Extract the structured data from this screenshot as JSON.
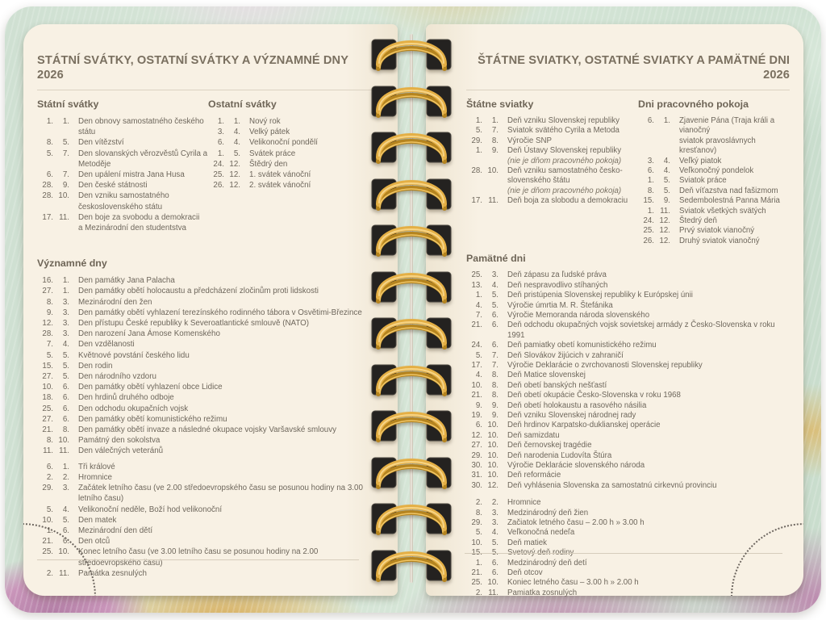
{
  "colors": {
    "page_cream": "#f7f0e3",
    "text_brown": "#6e675c",
    "cover_mint": "#d3e4d5",
    "cover_pink": "#c28eb4",
    "cover_gold": "#d9a94e",
    "spiral_gold": "#e4af45",
    "spiral_hole_black": "#242220"
  },
  "left_page": {
    "title": "STÁTNÍ SVÁTKY, OSTATNÍ SVÁTKY A VÝZNAMNÉ DNY 2026",
    "state_holidays": {
      "heading": "Státní svátky",
      "items": [
        {
          "d": "1.",
          "m": "1.",
          "text": "Den obnovy samostatného českého státu"
        },
        {
          "d": "8.",
          "m": "5.",
          "text": "Den vítězství"
        },
        {
          "d": "5.",
          "m": "7.",
          "text": "Den slovanských věrozvěstů Cyrila a Metoděje"
        },
        {
          "d": "6.",
          "m": "7.",
          "text": "Den upálení mistra Jana Husa"
        },
        {
          "d": "28.",
          "m": "9.",
          "text": "Den české státnosti"
        },
        {
          "d": "28.",
          "m": "10.",
          "text": "Den vzniku samostatného československého státu"
        },
        {
          "d": "17.",
          "m": "11.",
          "text": "Den boje za svobodu a demokracii",
          "text2": "a Mezinárodní den studentstva"
        }
      ]
    },
    "other_holidays": {
      "heading": "Ostatní svátky",
      "items": [
        {
          "d": "1.",
          "m": "1.",
          "text": "Nový rok"
        },
        {
          "d": "3.",
          "m": "4.",
          "text": "Velký pátek"
        },
        {
          "d": "6.",
          "m": "4.",
          "text": "Velikonoční pondělí"
        },
        {
          "d": "1.",
          "m": "5.",
          "text": "Svátek práce"
        },
        {
          "d": "24.",
          "m": "12.",
          "text": "Štědrý den"
        },
        {
          "d": "25.",
          "m": "12.",
          "text": "1. svátek vánoční"
        },
        {
          "d": "26.",
          "m": "12.",
          "text": "2. svátek vánoční"
        }
      ]
    },
    "notable_days": {
      "heading": "Významné dny",
      "items": [
        {
          "d": "16.",
          "m": "1.",
          "text": "Den památky Jana Palacha"
        },
        {
          "d": "27.",
          "m": "1.",
          "text": "Den památky obětí holocaustu a předcházení zločinům proti lidskosti"
        },
        {
          "d": "8.",
          "m": "3.",
          "text": "Mezinárodní den žen"
        },
        {
          "d": "9.",
          "m": "3.",
          "text": "Den památky obětí vyhlazení terezínského rodinného tábora v Osvětimi-Březince"
        },
        {
          "d": "12.",
          "m": "3.",
          "text": "Den přístupu České republiky k Severoatlantické smlouvě (NATO)"
        },
        {
          "d": "28.",
          "m": "3.",
          "text": "Den narození Jana Ámose Komenského"
        },
        {
          "d": "7.",
          "m": "4.",
          "text": "Den vzdělanosti"
        },
        {
          "d": "5.",
          "m": "5.",
          "text": "Květnové povstání českého lidu"
        },
        {
          "d": "15.",
          "m": "5.",
          "text": "Den rodin"
        },
        {
          "d": "27.",
          "m": "5.",
          "text": "Den národního vzdoru"
        },
        {
          "d": "10.",
          "m": "6.",
          "text": "Den památky obětí vyhlazení obce Lidice"
        },
        {
          "d": "18.",
          "m": "6.",
          "text": "Den hrdinů druhého odboje"
        },
        {
          "d": "25.",
          "m": "6.",
          "text": "Den odchodu okupačních vojsk"
        },
        {
          "d": "27.",
          "m": "6.",
          "text": "Den památky obětí komunistického režimu"
        },
        {
          "d": "21.",
          "m": "8.",
          "text": "Den památky obětí invaze a následné okupace vojsky Varšavské smlouvy"
        },
        {
          "d": "8.",
          "m": "10.",
          "text": "Památný den sokolstva"
        },
        {
          "d": "11.",
          "m": "11.",
          "text": "Den válečných veteránů"
        }
      ],
      "items2": [
        {
          "d": "6.",
          "m": "1.",
          "text": "Tři králové"
        },
        {
          "d": "2.",
          "m": "2.",
          "text": "Hromnice"
        },
        {
          "d": "29.",
          "m": "3.",
          "text": "Začátek letního času (ve 2.00 středoevropského času se posunou hodiny na 3.00 letního času)"
        },
        {
          "d": "5.",
          "m": "4.",
          "text": "Velikonoční neděle, Boží hod velikonoční"
        },
        {
          "d": "10.",
          "m": "5.",
          "text": "Den matek"
        },
        {
          "d": "1.",
          "m": "6.",
          "text": "Mezinárodní den dětí"
        },
        {
          "d": "21.",
          "m": "6.",
          "text": "Den otců"
        },
        {
          "d": "25.",
          "m": "10.",
          "text": "Konec letního času (ve 3.00 letního času se posunou hodiny na 2.00 středoevropského času)"
        },
        {
          "d": "2.",
          "m": "11.",
          "text": "Památka zesnulých"
        }
      ]
    }
  },
  "right_page": {
    "title": "ŠTÁTNE SVIATKY, OSTATNÉ SVIATKY A PAMÄTNÉ DNI 2026",
    "state_holidays": {
      "heading": "Štátne sviatky",
      "items": [
        {
          "d": "1.",
          "m": "1.",
          "text": "Deň vzniku Slovenskej republiky"
        },
        {
          "d": "5.",
          "m": "7.",
          "text": "Sviatok svätého Cyrila a Metoda"
        },
        {
          "d": "29.",
          "m": "8.",
          "text": "Výročie SNP"
        },
        {
          "d": "1.",
          "m": "9.",
          "text": "Deň Ústavy Slovenskej republiky",
          "note": "(nie je dňom pracovného pokoja)"
        },
        {
          "d": "28.",
          "m": "10.",
          "text": "Deň vzniku samostatného česko-slovenského štátu",
          "note": "(nie je dňom pracovného pokoja)"
        },
        {
          "d": "17.",
          "m": "11.",
          "text": "Deň boja za slobodu a demokraciu"
        }
      ]
    },
    "rest_days": {
      "heading": "Dni pracovného pokoja",
      "items": [
        {
          "d": "6.",
          "m": "1.",
          "text": "Zjavenie Pána (Traja králi a vianočný",
          "text2": "sviatok pravoslávnych kresťanov)"
        },
        {
          "d": "3.",
          "m": "4.",
          "text": "Veľký piatok"
        },
        {
          "d": "6.",
          "m": "4.",
          "text": "Veľkonočný pondelok"
        },
        {
          "d": "1.",
          "m": "5.",
          "text": "Sviatok práce"
        },
        {
          "d": "8.",
          "m": "5.",
          "text": "Deň víťazstva nad fašizmom"
        },
        {
          "d": "15.",
          "m": "9.",
          "text": "Sedembolestná Panna Mária"
        },
        {
          "d": "1.",
          "m": "11.",
          "text": "Sviatok všetkých svätých"
        },
        {
          "d": "24.",
          "m": "12.",
          "text": "Štedrý deň"
        },
        {
          "d": "25.",
          "m": "12.",
          "text": "Prvý sviatok vianočný"
        },
        {
          "d": "26.",
          "m": "12.",
          "text": "Druhý sviatok vianočný"
        }
      ]
    },
    "memorial_days": {
      "heading": "Pamätné dni",
      "items": [
        {
          "d": "25.",
          "m": "3.",
          "text": "Deň zápasu za ľudské práva"
        },
        {
          "d": "13.",
          "m": "4.",
          "text": "Deň nespravodlivo stíhaných"
        },
        {
          "d": "1.",
          "m": "5.",
          "text": "Deň pristúpenia Slovenskej republiky k Európskej únii"
        },
        {
          "d": "4.",
          "m": "5.",
          "text": "Výročie úmrtia M. R. Štefánika"
        },
        {
          "d": "7.",
          "m": "6.",
          "text": "Výročie Memoranda národa slovenského"
        },
        {
          "d": "21.",
          "m": "6.",
          "text": "Deň odchodu okupačných vojsk sovietskej armády z Česko-Slovenska v roku 1991"
        },
        {
          "d": "24.",
          "m": "6.",
          "text": "Deň pamiatky obetí komunistického režimu"
        },
        {
          "d": "5.",
          "m": "7.",
          "text": "Deň Slovákov žijúcich v zahraničí"
        },
        {
          "d": "17.",
          "m": "7.",
          "text": "Výročie Deklarácie o zvrchovanosti Slovenskej republiky"
        },
        {
          "d": "4.",
          "m": "8.",
          "text": "Deň Matice slovenskej"
        },
        {
          "d": "10.",
          "m": "8.",
          "text": "Deň obetí banských nešťastí"
        },
        {
          "d": "21.",
          "m": "8.",
          "text": "Deň obetí okupácie Česko-Slovenska v roku 1968"
        },
        {
          "d": "9.",
          "m": "9.",
          "text": "Deň obetí holokaustu a rasového násilia"
        },
        {
          "d": "19.",
          "m": "9.",
          "text": "Deň vzniku Slovenskej národnej rady"
        },
        {
          "d": "6.",
          "m": "10.",
          "text": "Deň hrdinov Karpatsko-duklianskej operácie"
        },
        {
          "d": "12.",
          "m": "10.",
          "text": "Deň samizdatu"
        },
        {
          "d": "27.",
          "m": "10.",
          "text": "Deň černovskej tragédie"
        },
        {
          "d": "29.",
          "m": "10.",
          "text": "Deň narodenia Ľudovíta Štúra"
        },
        {
          "d": "30.",
          "m": "10.",
          "text": "Výročie Deklarácie slovenského národa"
        },
        {
          "d": "31.",
          "m": "10.",
          "text": "Deň reformácie"
        },
        {
          "d": "30.",
          "m": "12.",
          "text": "Deň vyhlásenia Slovenska za samostatnú cirkevnú provinciu"
        }
      ],
      "items2": [
        {
          "d": "2.",
          "m": "2.",
          "text": "Hromnice"
        },
        {
          "d": "8.",
          "m": "3.",
          "text": "Medzinárodný deň žien"
        },
        {
          "d": "29.",
          "m": "3.",
          "text": "Začiatok letného času – 2.00 h » 3.00 h"
        },
        {
          "d": "5.",
          "m": "4.",
          "text": "Veľkonočná nedeľa"
        },
        {
          "d": "10.",
          "m": "5.",
          "text": "Deň matiek"
        },
        {
          "d": "15.",
          "m": "5.",
          "text": "Svetový deň rodiny"
        },
        {
          "d": "1.",
          "m": "6.",
          "text": "Medzinárodný deň detí"
        },
        {
          "d": "21.",
          "m": "6.",
          "text": "Deň otcov"
        },
        {
          "d": "25.",
          "m": "10.",
          "text": "Koniec letného času – 3.00 h » 2.00 h"
        },
        {
          "d": "2.",
          "m": "11.",
          "text": "Pamiatka zosnulých"
        }
      ]
    }
  }
}
